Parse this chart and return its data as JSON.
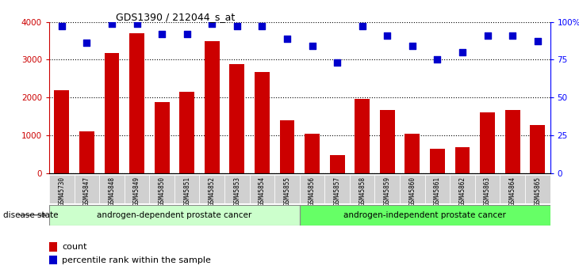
{
  "title": "GDS1390 / 212044_s_at",
  "samples": [
    "GSM45730",
    "GSM45847",
    "GSM45848",
    "GSM45849",
    "GSM45850",
    "GSM45851",
    "GSM45852",
    "GSM45853",
    "GSM45854",
    "GSM45855",
    "GSM45856",
    "GSM45857",
    "GSM45858",
    "GSM45859",
    "GSM45860",
    "GSM45861",
    "GSM45862",
    "GSM45863",
    "GSM45864",
    "GSM45865"
  ],
  "counts": [
    2200,
    1100,
    3180,
    3700,
    1880,
    2150,
    3500,
    2880,
    2680,
    1400,
    1050,
    480,
    1970,
    1680,
    1050,
    650,
    700,
    1600,
    1680,
    1270
  ],
  "percentiles": [
    97,
    86,
    99,
    99,
    92,
    92,
    99,
    97,
    97,
    89,
    84,
    73,
    97,
    91,
    84,
    75,
    80,
    91,
    91,
    87
  ],
  "bar_color": "#cc0000",
  "dot_color": "#0000cc",
  "group1_label": "androgen-dependent prostate cancer",
  "group2_label": "androgen-independent prostate cancer",
  "group1_color": "#ccffcc",
  "group2_color": "#66ff66",
  "group1_count": 10,
  "group2_count": 10,
  "ylim_left": [
    0,
    4000
  ],
  "ylim_right": [
    0,
    100
  ],
  "yticks_left": [
    0,
    1000,
    2000,
    3000,
    4000
  ],
  "ytick_labels_left": [
    "0",
    "1000",
    "2000",
    "3000",
    "4000"
  ],
  "yticks_right": [
    0,
    25,
    50,
    75,
    100
  ],
  "ytick_labels_right": [
    "0",
    "25",
    "50",
    "75",
    "100%"
  ],
  "legend_count_label": "count",
  "legend_pct_label": "percentile rank within the sample",
  "disease_state_label": "disease state",
  "background_color": "#ffffff",
  "bar_width": 0.6,
  "dot_size": 30,
  "grid_color": "black",
  "grid_linestyle": "dotted",
  "grid_linewidth": 0.8
}
